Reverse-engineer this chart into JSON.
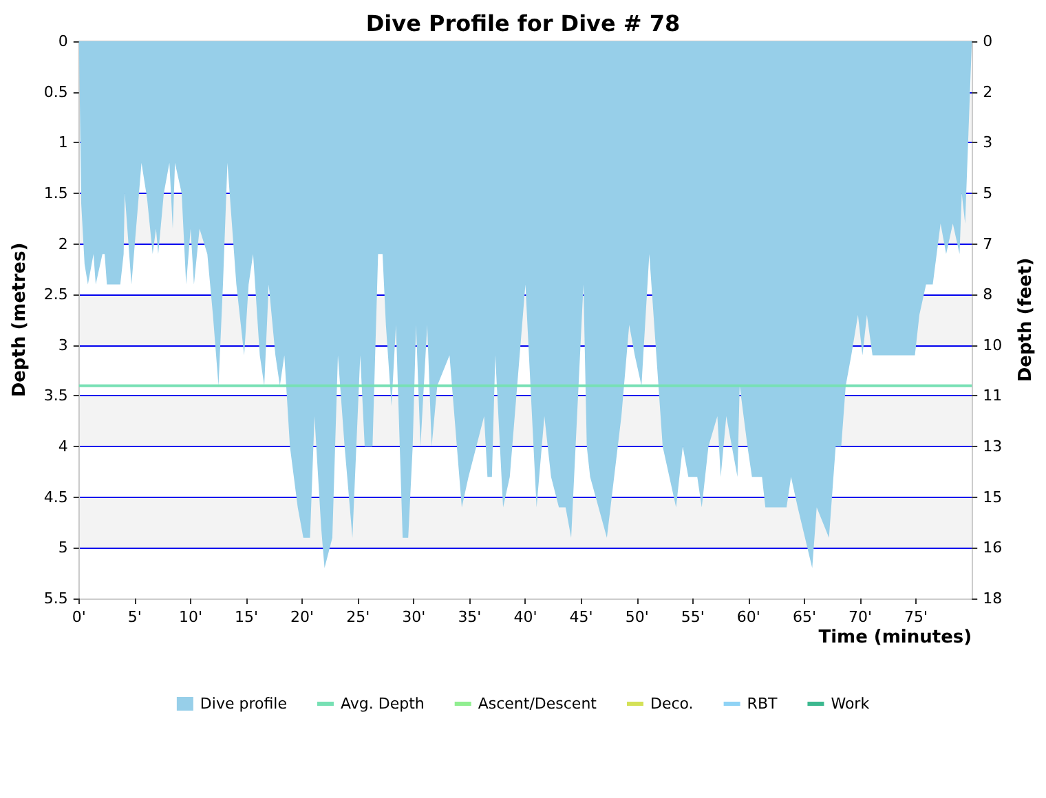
{
  "chart_data": {
    "type": "area",
    "title": "Dive Profile for Dive # 78",
    "xlabel": "Time (minutes)",
    "ylabel": "Depth (metres)",
    "y2label": "Depth (feet)",
    "xlim": [
      0,
      80
    ],
    "xticks": [
      {
        "value": 0,
        "label": "0'"
      },
      {
        "value": 5,
        "label": "5'"
      },
      {
        "value": 10,
        "label": "10'"
      },
      {
        "value": 15,
        "label": "15'"
      },
      {
        "value": 20,
        "label": "20'"
      },
      {
        "value": 25,
        "label": "25'"
      },
      {
        "value": 30,
        "label": "30'"
      },
      {
        "value": 35,
        "label": "35'"
      },
      {
        "value": 40,
        "label": "40'"
      },
      {
        "value": 45,
        "label": "45'"
      },
      {
        "value": 50,
        "label": "50'"
      },
      {
        "value": 55,
        "label": "55'"
      },
      {
        "value": 60,
        "label": "60'"
      },
      {
        "value": 65,
        "label": "65'"
      },
      {
        "value": 70,
        "label": "70'"
      },
      {
        "value": 75,
        "label": "75'"
      }
    ],
    "ylim": [
      5.5,
      0
    ],
    "yticks": [
      0,
      0.5,
      1,
      1.5,
      2,
      2.5,
      3,
      3.5,
      4,
      4.5,
      5,
      5.5
    ],
    "y2lim": [
      18.04,
      0
    ],
    "y2ticks": [
      {
        "value": 0,
        "label": "0"
      },
      {
        "value": 1.64,
        "label": "2"
      },
      {
        "value": 3.28,
        "label": "3"
      },
      {
        "value": 4.92,
        "label": "5"
      },
      {
        "value": 6.56,
        "label": "7"
      },
      {
        "value": 8.2,
        "label": "8"
      },
      {
        "value": 9.84,
        "label": "10"
      },
      {
        "value": 11.48,
        "label": "11"
      },
      {
        "value": 13.12,
        "label": "13"
      },
      {
        "value": 14.76,
        "label": "15"
      },
      {
        "value": 16.4,
        "label": "16"
      },
      {
        "value": 18.04,
        "label": "18"
      }
    ],
    "grid": "y",
    "legend": "bottom",
    "marker": "none",
    "series": [
      {
        "name": "Dive profile",
        "color": "#97cfe9",
        "x": [
          0,
          0.2,
          0.5,
          0.8,
          1.3,
          1.5,
          2.1,
          2.3,
          2.5,
          3.7,
          4.0,
          4.1,
          4.7,
          5.6,
          6.1,
          6.6,
          6.9,
          7.1,
          7.6,
          8.1,
          8.4,
          8.6,
          9.2,
          9.6,
          10.0,
          10.3,
          10.8,
          11.5,
          12.0,
          12.5,
          12.9,
          13.3,
          13.9,
          14.1,
          14.8,
          15.2,
          15.6,
          16.2,
          16.6,
          17.0,
          17.6,
          18.0,
          18.4,
          18.9,
          19.6,
          20.1,
          20.7,
          21.1,
          21.7,
          22.0,
          22.7,
          23.2,
          23.8,
          24.5,
          25.2,
          25.6,
          26.3,
          26.8,
          27.2,
          27.5,
          28.0,
          28.4,
          29.0,
          29.5,
          29.9,
          30.2,
          30.6,
          31.2,
          31.6,
          32.1,
          33.2,
          34.3,
          34.9,
          36.3,
          36.6,
          37.0,
          37.3,
          38.0,
          38.6,
          40.0,
          41.0,
          41.7,
          42.3,
          43.0,
          43.6,
          44.1,
          45.2,
          45.5,
          45.8,
          47.3,
          48.6,
          49.3,
          49.8,
          50.4,
          51.1,
          52.3,
          53.5,
          54.1,
          54.6,
          55.4,
          55.8,
          56.4,
          57.2,
          57.5,
          58.0,
          59.0,
          59.2,
          59.9,
          60.3,
          61.2,
          61.5,
          63.4,
          63.8,
          64.4,
          65.7,
          66.1,
          67.2,
          67.8,
          68.3,
          68.7,
          69.2,
          69.8,
          70.2,
          70.6,
          71.1,
          74.9,
          75.3,
          75.9,
          76.5,
          77.2,
          77.7,
          78.3,
          78.9,
          79.1,
          79.4,
          79.7,
          80
        ],
        "values": [
          0,
          1.6,
          2.2,
          2.4,
          2.1,
          2.4,
          2.1,
          2.1,
          2.4,
          2.4,
          2.1,
          1.5,
          2.4,
          1.2,
          1.55,
          2.1,
          1.85,
          2.1,
          1.5,
          1.2,
          1.85,
          1.2,
          1.5,
          2.4,
          1.85,
          2.4,
          1.85,
          2.1,
          2.7,
          3.4,
          2.4,
          1.2,
          2.1,
          2.4,
          3.1,
          2.4,
          2.1,
          3.1,
          3.4,
          2.4,
          3.1,
          3.4,
          3.1,
          4.0,
          4.6,
          4.9,
          4.9,
          3.7,
          4.8,
          5.2,
          4.9,
          3.1,
          4.0,
          4.9,
          3.1,
          4.0,
          4.0,
          2.1,
          2.1,
          2.8,
          3.6,
          2.8,
          4.9,
          4.9,
          4.0,
          2.8,
          4.0,
          2.8,
          4.0,
          3.4,
          3.1,
          4.6,
          4.3,
          3.7,
          4.3,
          4.3,
          3.1,
          4.6,
          4.3,
          2.4,
          4.6,
          3.7,
          4.3,
          4.6,
          4.6,
          4.9,
          2.4,
          4.0,
          4.3,
          4.9,
          3.7,
          2.8,
          3.1,
          3.4,
          2.1,
          4.0,
          4.6,
          4.0,
          4.3,
          4.3,
          4.6,
          4.0,
          3.7,
          4.3,
          3.7,
          4.3,
          3.4,
          4.0,
          4.3,
          4.3,
          4.6,
          4.6,
          4.3,
          4.6,
          5.2,
          4.6,
          4.9,
          4.0,
          4.0,
          3.4,
          3.1,
          2.7,
          3.1,
          2.7,
          3.1,
          3.1,
          2.7,
          2.4,
          2.4,
          1.8,
          2.1,
          1.8,
          2.1,
          1.5,
          1.8,
          0.9,
          0
        ]
      },
      {
        "name": "Avg. Depth",
        "type": "line",
        "color": "#77e0b4",
        "x": [
          0,
          80
        ],
        "values": [
          3.4,
          3.4
        ]
      },
      {
        "name": "Ascent/Descent",
        "type": "line",
        "color": "#90ee90"
      },
      {
        "name": "Deco.",
        "type": "line",
        "color": "#d4e157"
      },
      {
        "name": "RBT",
        "type": "line",
        "color": "#8fd3f5"
      },
      {
        "name": "Work",
        "type": "line",
        "color": "#3cb88f"
      }
    ]
  }
}
